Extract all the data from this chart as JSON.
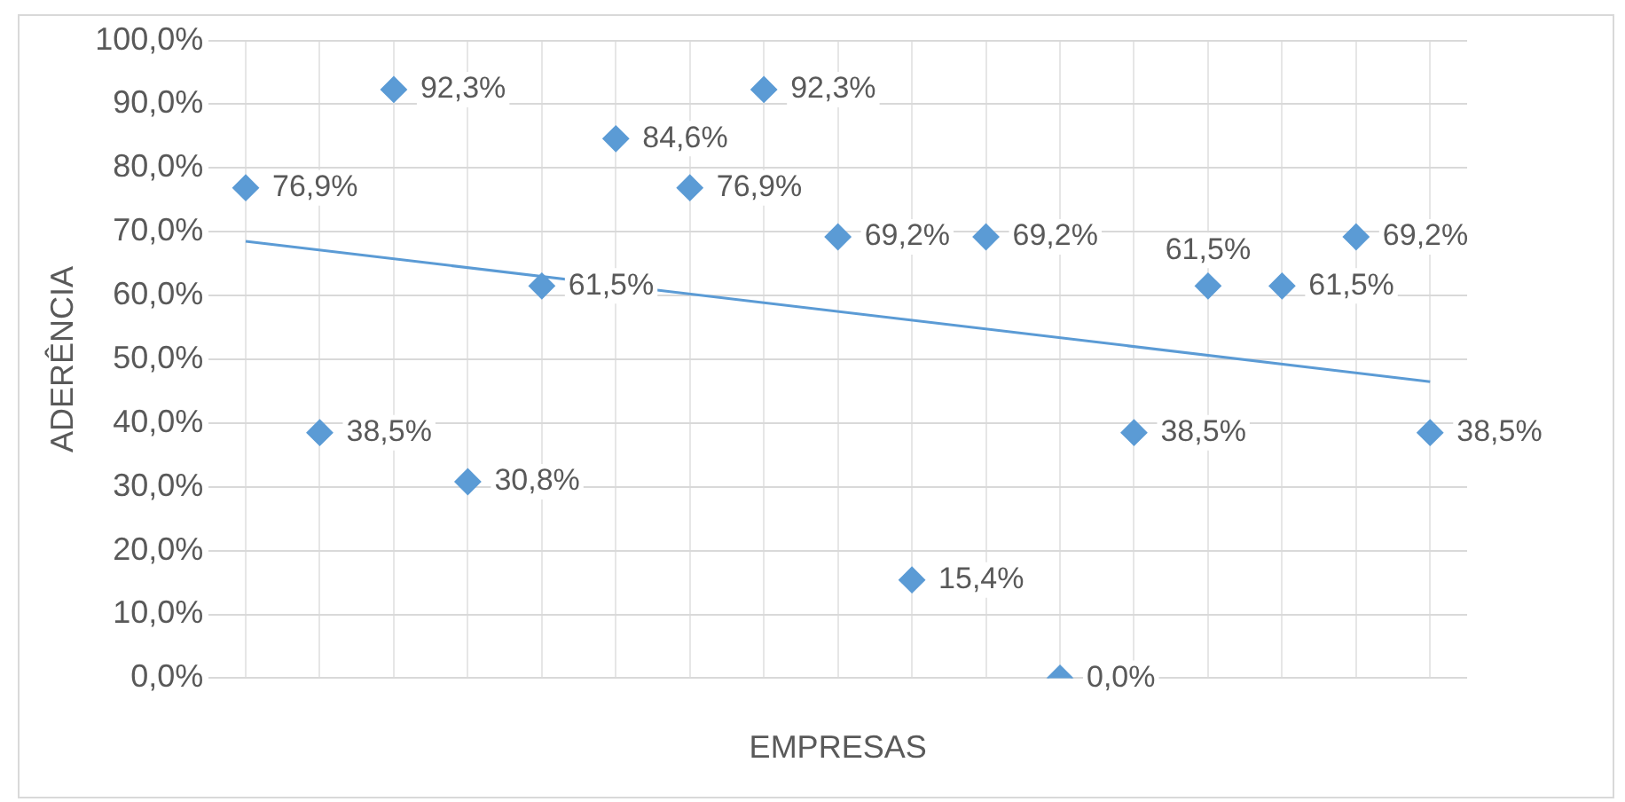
{
  "chart_data": {
    "type": "scatter",
    "xlabel": "EMPRESAS",
    "ylabel": "ADERÊNCIA",
    "categories": [
      null,
      null,
      null,
      null,
      null,
      null,
      null,
      null,
      null,
      null,
      null,
      null,
      null,
      null,
      null,
      null,
      null
    ],
    "ylim": [
      0,
      100
    ],
    "yticks": [
      {
        "value": 0,
        "label": "0,0%"
      },
      {
        "value": 10,
        "label": "10,0%"
      },
      {
        "value": 20,
        "label": "20,0%"
      },
      {
        "value": 30,
        "label": "30,0%"
      },
      {
        "value": 40,
        "label": "40,0%"
      },
      {
        "value": 50,
        "label": "50,0%"
      },
      {
        "value": 60,
        "label": "60,0%"
      },
      {
        "value": 70,
        "label": "70,0%"
      },
      {
        "value": 80,
        "label": "80,0%"
      },
      {
        "value": 90,
        "label": "90,0%"
      },
      {
        "value": 100,
        "label": "100,0%"
      }
    ],
    "grid": true,
    "legend": false,
    "series": [
      {
        "color": "#5b9bd5",
        "marker": "diamond",
        "values": [
          76.9,
          38.5,
          92.3,
          30.8,
          61.5,
          84.6,
          76.9,
          92.3,
          69.2,
          15.4,
          69.2,
          0,
          38.5,
          61.5,
          61.5,
          69.2,
          38.5
        ],
        "value_labels": [
          "76,9%",
          "38,5%",
          "92,3%",
          "30,8%",
          "61,5%",
          "84,6%",
          "76,9%",
          "92,3%",
          "69,2%",
          "15,4%",
          "69,2%",
          "0,0%",
          "38,5%",
          "61,5%",
          "61,5%",
          "69,2%",
          "38,5%"
        ]
      },
      {
        "type": "line",
        "color": "#5b9bd5",
        "marker": "none",
        "values": [
          68.5,
          null,
          null,
          null,
          null,
          null,
          null,
          null,
          null,
          null,
          null,
          null,
          null,
          null,
          null,
          null,
          46.5
        ]
      }
    ]
  }
}
